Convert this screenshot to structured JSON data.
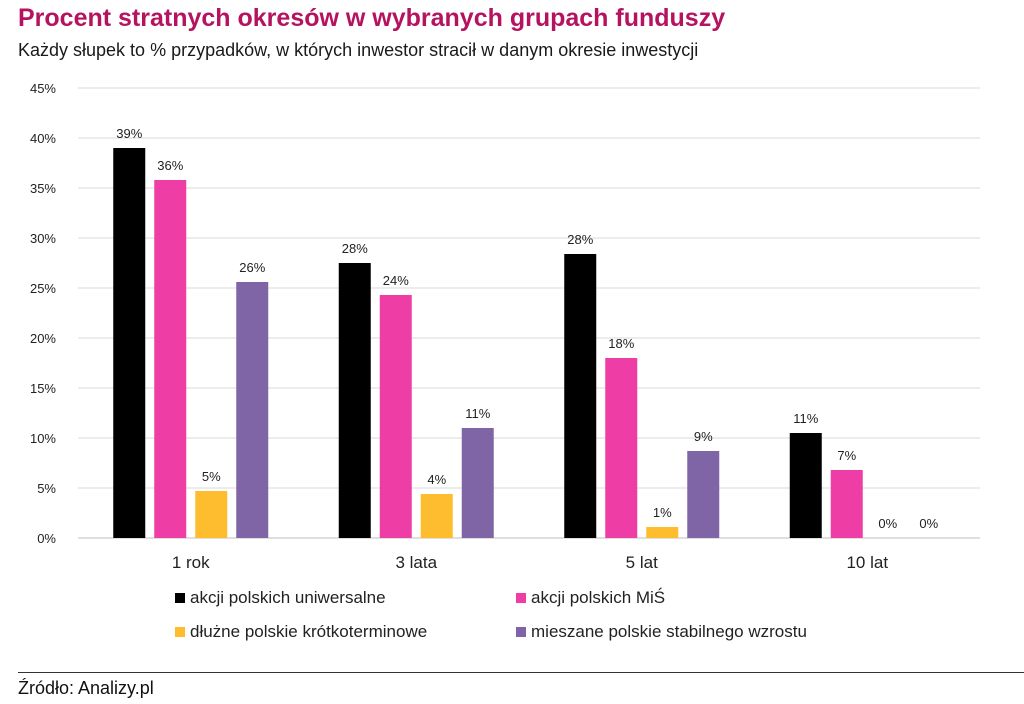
{
  "header": {
    "title": "Procent stratnych okresów w wybranych grupach funduszy",
    "subtitle": "Każdy słupek to % przypadków, w których inwestor stracił w danym okresie inwestycji"
  },
  "source": "Źródło: Analizy.pl",
  "chart_data": {
    "type": "bar",
    "categories": [
      "1 rok",
      "3 lata",
      "5 lat",
      "10 lat"
    ],
    "series": [
      {
        "name": "akcji polskich uniwersalne",
        "color": "#000000",
        "values": [
          39,
          27.5,
          28.4,
          10.5
        ],
        "labels": [
          "39%",
          "28%",
          "28%",
          "11%"
        ]
      },
      {
        "name": "akcji polskich MiŚ",
        "color": "#ee3ea6",
        "values": [
          35.8,
          24.3,
          18,
          6.8
        ],
        "labels": [
          "36%",
          "24%",
          "18%",
          "7%"
        ]
      },
      {
        "name": "dłużne polskie krótkoterminowe",
        "color": "#fdbd2f",
        "values": [
          4.7,
          4.4,
          1.1,
          0
        ],
        "labels": [
          "5%",
          "4%",
          "1%",
          "0%"
        ]
      },
      {
        "name": "mieszane polskie stabilnego wzrostu",
        "color": "#8065a6",
        "values": [
          25.6,
          11,
          8.7,
          0
        ],
        "labels": [
          "26%",
          "11%",
          "9%",
          "0%"
        ]
      }
    ],
    "yticks": [
      "0%",
      "5%",
      "10%",
      "15%",
      "20%",
      "25%",
      "30%",
      "35%",
      "40%",
      "45%"
    ],
    "ylim": [
      0,
      45
    ],
    "grid": true,
    "gridColor": "#d9d9d9",
    "legend_position": "bottom"
  }
}
